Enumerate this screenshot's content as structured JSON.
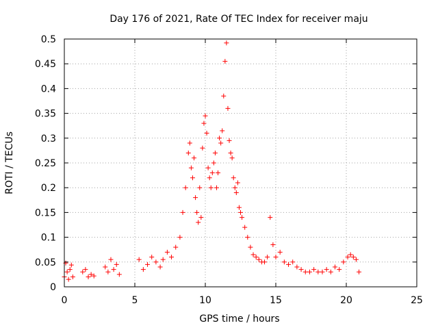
{
  "chart_data": {
    "type": "scatter",
    "title": "Day 176 of 2021, Rate Of TEC Index for receiver maju",
    "xlabel": "GPS time / hours",
    "ylabel": "ROTI / TECUs",
    "xlim": [
      0,
      25
    ],
    "ylim": [
      0,
      0.5
    ],
    "x_ticks": [
      0,
      5,
      10,
      15,
      20,
      25
    ],
    "x_tick_labels": [
      "0",
      "5",
      "10",
      "15",
      "20",
      "25"
    ],
    "y_ticks": [
      0,
      0.05,
      0.1,
      0.15,
      0.2,
      0.25,
      0.3,
      0.35,
      0.4,
      0.45,
      0.5
    ],
    "y_tick_labels": [
      "0",
      "0.05",
      "0.1",
      "0.15",
      "0.2",
      "0.25",
      "0.3",
      "0.35",
      "0.4",
      "0.45",
      "0.5"
    ],
    "grid": true,
    "marker": "+",
    "color": "#ff0000",
    "series": [
      {
        "name": "ROTI",
        "x": [
          0.0,
          0.1,
          0.2,
          0.3,
          0.4,
          0.5,
          0.6,
          1.3,
          1.5,
          1.7,
          1.9,
          2.1,
          2.9,
          3.1,
          3.3,
          3.5,
          3.7,
          3.9,
          5.3,
          5.6,
          5.9,
          6.2,
          6.5,
          6.8,
          7.0,
          7.3,
          7.6,
          7.9,
          8.2,
          8.4,
          8.6,
          8.8,
          8.9,
          9.0,
          9.1,
          9.2,
          9.3,
          9.4,
          9.5,
          9.6,
          9.7,
          9.8,
          9.9,
          10.0,
          10.1,
          10.2,
          10.3,
          10.4,
          10.5,
          10.6,
          10.7,
          10.8,
          10.9,
          11.0,
          11.1,
          11.2,
          11.3,
          11.4,
          11.5,
          11.6,
          11.7,
          11.8,
          11.9,
          12.0,
          12.1,
          12.2,
          12.3,
          12.4,
          12.5,
          12.6,
          12.8,
          13.0,
          13.2,
          13.4,
          13.6,
          13.8,
          14.0,
          14.2,
          14.4,
          14.6,
          14.8,
          15.0,
          15.3,
          15.6,
          15.9,
          16.2,
          16.5,
          16.8,
          17.1,
          17.4,
          17.7,
          18.0,
          18.3,
          18.6,
          18.9,
          19.2,
          19.5,
          19.8,
          20.1,
          20.3,
          20.5,
          20.7,
          20.9
        ],
        "y": [
          0.02,
          0.048,
          0.03,
          0.015,
          0.035,
          0.044,
          0.02,
          0.03,
          0.035,
          0.02,
          0.025,
          0.022,
          0.04,
          0.03,
          0.055,
          0.035,
          0.045,
          0.025,
          0.055,
          0.035,
          0.045,
          0.06,
          0.05,
          0.04,
          0.055,
          0.07,
          0.06,
          0.08,
          0.1,
          0.15,
          0.2,
          0.27,
          0.29,
          0.24,
          0.22,
          0.26,
          0.18,
          0.15,
          0.13,
          0.2,
          0.14,
          0.28,
          0.33,
          0.345,
          0.31,
          0.24,
          0.22,
          0.2,
          0.23,
          0.25,
          0.27,
          0.2,
          0.23,
          0.3,
          0.29,
          0.315,
          0.385,
          0.455,
          0.492,
          0.36,
          0.295,
          0.27,
          0.26,
          0.22,
          0.2,
          0.19,
          0.21,
          0.16,
          0.15,
          0.14,
          0.12,
          0.1,
          0.08,
          0.065,
          0.06,
          0.055,
          0.05,
          0.05,
          0.06,
          0.14,
          0.085,
          0.06,
          0.07,
          0.05,
          0.045,
          0.05,
          0.04,
          0.035,
          0.03,
          0.03,
          0.035,
          0.03,
          0.03,
          0.035,
          0.03,
          0.04,
          0.035,
          0.05,
          0.06,
          0.065,
          0.06,
          0.055,
          0.03
        ]
      }
    ]
  }
}
